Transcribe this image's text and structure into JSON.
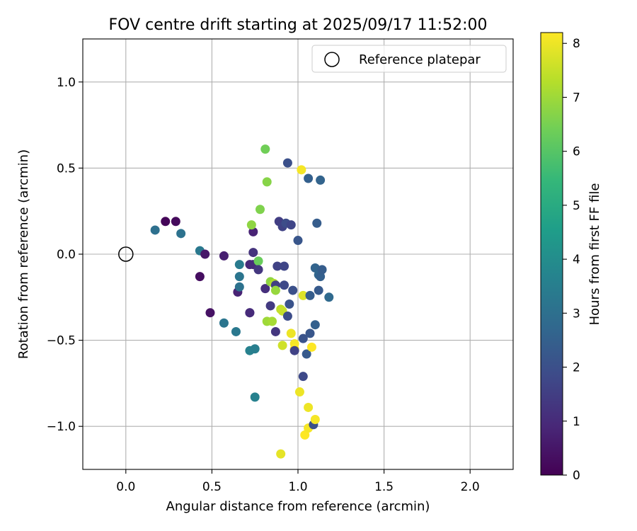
{
  "chart_data": {
    "type": "scatter",
    "title": "FOV centre drift starting at 2025/09/17 11:52:00",
    "xlabel": "Angular distance from reference (arcmin)",
    "ylabel": "Rotation from reference (arcmin)",
    "xlim": [
      -0.25,
      2.25
    ],
    "ylim": [
      -1.25,
      1.25
    ],
    "xticks": [
      0.0,
      0.5,
      1.0,
      1.5,
      2.0
    ],
    "xtick_labels": [
      "0.0",
      "0.5",
      "1.0",
      "1.5",
      "2.0"
    ],
    "yticks": [
      1.0,
      0.5,
      0.0,
      -0.5,
      -1.0
    ],
    "ytick_labels": [
      "1.0",
      "0.5",
      "0.0",
      "−0.5",
      "−1.0"
    ],
    "grid": true,
    "legend": {
      "position": "top-right",
      "entries": [
        "Reference platepar"
      ]
    },
    "reference_point": {
      "x": 0.0,
      "y": 0.0,
      "label": "Reference platepar"
    },
    "colorbar": {
      "label": "Hours from first FF file",
      "min": 0,
      "max": 8.2,
      "ticks": [
        0,
        1,
        2,
        3,
        4,
        5,
        6,
        7,
        8
      ],
      "tick_labels": [
        "0",
        "1",
        "2",
        "3",
        "4",
        "5",
        "6",
        "7",
        "8"
      ],
      "colormap": "viridis",
      "colors": [
        "#440154",
        "#482878",
        "#3e4a89",
        "#31688e",
        "#26828e",
        "#1f9e89",
        "#35b779",
        "#6ece58",
        "#b5de2b",
        "#fde725"
      ]
    },
    "points": [
      {
        "x": 0.23,
        "y": 0.19,
        "h": 0.1
      },
      {
        "x": 0.29,
        "y": 0.19,
        "h": 0.2
      },
      {
        "x": 0.17,
        "y": 0.14,
        "h": 3.0
      },
      {
        "x": 0.32,
        "y": 0.12,
        "h": 3.1
      },
      {
        "x": 0.43,
        "y": 0.02,
        "h": 3.3
      },
      {
        "x": 0.46,
        "y": 0.0,
        "h": 0.5
      },
      {
        "x": 0.57,
        "y": -0.01,
        "h": 0.7
      },
      {
        "x": 0.43,
        "y": -0.13,
        "h": 0.3
      },
      {
        "x": 0.49,
        "y": -0.34,
        "h": 0.4
      },
      {
        "x": 0.57,
        "y": -0.4,
        "h": 3.2
      },
      {
        "x": 0.64,
        "y": -0.45,
        "h": 3.3
      },
      {
        "x": 0.65,
        "y": -0.22,
        "h": 0.8
      },
      {
        "x": 0.66,
        "y": -0.19,
        "h": 3.1
      },
      {
        "x": 0.66,
        "y": -0.13,
        "h": 3.2
      },
      {
        "x": 0.66,
        "y": -0.06,
        "h": 3.4
      },
      {
        "x": 0.72,
        "y": -0.06,
        "h": 0.9
      },
      {
        "x": 0.74,
        "y": -0.06,
        "h": 1.0
      },
      {
        "x": 0.74,
        "y": 0.01,
        "h": 1.2
      },
      {
        "x": 0.74,
        "y": 0.13,
        "h": 0.8
      },
      {
        "x": 0.73,
        "y": 0.17,
        "h": 6.8
      },
      {
        "x": 0.72,
        "y": -0.34,
        "h": 1.1
      },
      {
        "x": 0.72,
        "y": -0.34,
        "h": 1.0
      },
      {
        "x": 0.72,
        "y": -0.56,
        "h": 3.6
      },
      {
        "x": 0.75,
        "y": -0.55,
        "h": 3.5
      },
      {
        "x": 0.75,
        "y": -0.83,
        "h": 3.6
      },
      {
        "x": 0.77,
        "y": -0.04,
        "h": 6.3
      },
      {
        "x": 0.77,
        "y": -0.09,
        "h": 1.3
      },
      {
        "x": 0.78,
        "y": 0.26,
        "h": 6.6
      },
      {
        "x": 0.81,
        "y": -0.2,
        "h": 1.1
      },
      {
        "x": 0.81,
        "y": 0.61,
        "h": 6.4
      },
      {
        "x": 0.82,
        "y": 0.42,
        "h": 6.7
      },
      {
        "x": 0.82,
        "y": -0.39,
        "h": 7.0
      },
      {
        "x": 0.84,
        "y": -0.3,
        "h": 1.4
      },
      {
        "x": 0.84,
        "y": -0.16,
        "h": 6.8
      },
      {
        "x": 0.86,
        "y": -0.17,
        "h": 7.2
      },
      {
        "x": 0.85,
        "y": -0.39,
        "h": 7.1
      },
      {
        "x": 0.87,
        "y": -0.45,
        "h": 1.3
      },
      {
        "x": 0.87,
        "y": -0.18,
        "h": 1.5
      },
      {
        "x": 0.87,
        "y": -0.21,
        "h": 6.9
      },
      {
        "x": 0.88,
        "y": -0.07,
        "h": 1.6
      },
      {
        "x": 0.89,
        "y": 0.19,
        "h": 1.5
      },
      {
        "x": 0.9,
        "y": -0.32,
        "h": 7.4
      },
      {
        "x": 0.91,
        "y": 0.16,
        "h": 1.6
      },
      {
        "x": 0.91,
        "y": -0.33,
        "h": 7.5
      },
      {
        "x": 0.91,
        "y": -0.53,
        "h": 7.6
      },
      {
        "x": 0.92,
        "y": -0.07,
        "h": 1.7
      },
      {
        "x": 0.92,
        "y": -0.18,
        "h": 1.8
      },
      {
        "x": 0.93,
        "y": 0.18,
        "h": 1.9
      },
      {
        "x": 0.94,
        "y": 0.53,
        "h": 2.0
      },
      {
        "x": 0.94,
        "y": -0.36,
        "h": 1.9
      },
      {
        "x": 0.95,
        "y": -0.29,
        "h": 2.1
      },
      {
        "x": 0.96,
        "y": 0.17,
        "h": 1.7
      },
      {
        "x": 0.96,
        "y": -0.46,
        "h": 8.0
      },
      {
        "x": 0.97,
        "y": -0.21,
        "h": 2.0
      },
      {
        "x": 0.98,
        "y": -0.52,
        "h": 8.1
      },
      {
        "x": 0.98,
        "y": -0.55,
        "h": 8.2
      },
      {
        "x": 0.98,
        "y": -0.56,
        "h": 1.6
      },
      {
        "x": 1.0,
        "y": 0.08,
        "h": 2.2
      },
      {
        "x": 1.01,
        "y": -0.8,
        "h": 8.0
      },
      {
        "x": 1.02,
        "y": 0.49,
        "h": 8.1
      },
      {
        "x": 1.03,
        "y": -0.49,
        "h": 2.1
      },
      {
        "x": 1.03,
        "y": -0.71,
        "h": 1.8
      },
      {
        "x": 1.03,
        "y": -0.24,
        "h": 7.8
      },
      {
        "x": 1.04,
        "y": -1.05,
        "h": 8.2
      },
      {
        "x": 1.05,
        "y": -0.58,
        "h": 2.3
      },
      {
        "x": 1.06,
        "y": 0.44,
        "h": 2.5
      },
      {
        "x": 1.06,
        "y": -1.01,
        "h": 8.1
      },
      {
        "x": 1.06,
        "y": -0.89,
        "h": 8.0
      },
      {
        "x": 1.07,
        "y": -0.24,
        "h": 2.4
      },
      {
        "x": 1.07,
        "y": -0.46,
        "h": 2.2
      },
      {
        "x": 1.08,
        "y": -0.54,
        "h": 8.2
      },
      {
        "x": 1.09,
        "y": -0.99,
        "h": 2.0
      },
      {
        "x": 1.1,
        "y": -0.96,
        "h": 8.1
      },
      {
        "x": 1.1,
        "y": -0.41,
        "h": 2.5
      },
      {
        "x": 1.1,
        "y": -0.08,
        "h": 2.6
      },
      {
        "x": 1.11,
        "y": 0.18,
        "h": 2.4
      },
      {
        "x": 1.12,
        "y": -0.12,
        "h": 2.7
      },
      {
        "x": 1.12,
        "y": -0.21,
        "h": 2.3
      },
      {
        "x": 1.13,
        "y": 0.43,
        "h": 2.6
      },
      {
        "x": 1.13,
        "y": -0.13,
        "h": 2.5
      },
      {
        "x": 1.14,
        "y": -0.09,
        "h": 2.4
      },
      {
        "x": 1.18,
        "y": -0.25,
        "h": 2.8
      },
      {
        "x": 0.9,
        "y": -1.16,
        "h": 7.9
      }
    ]
  }
}
